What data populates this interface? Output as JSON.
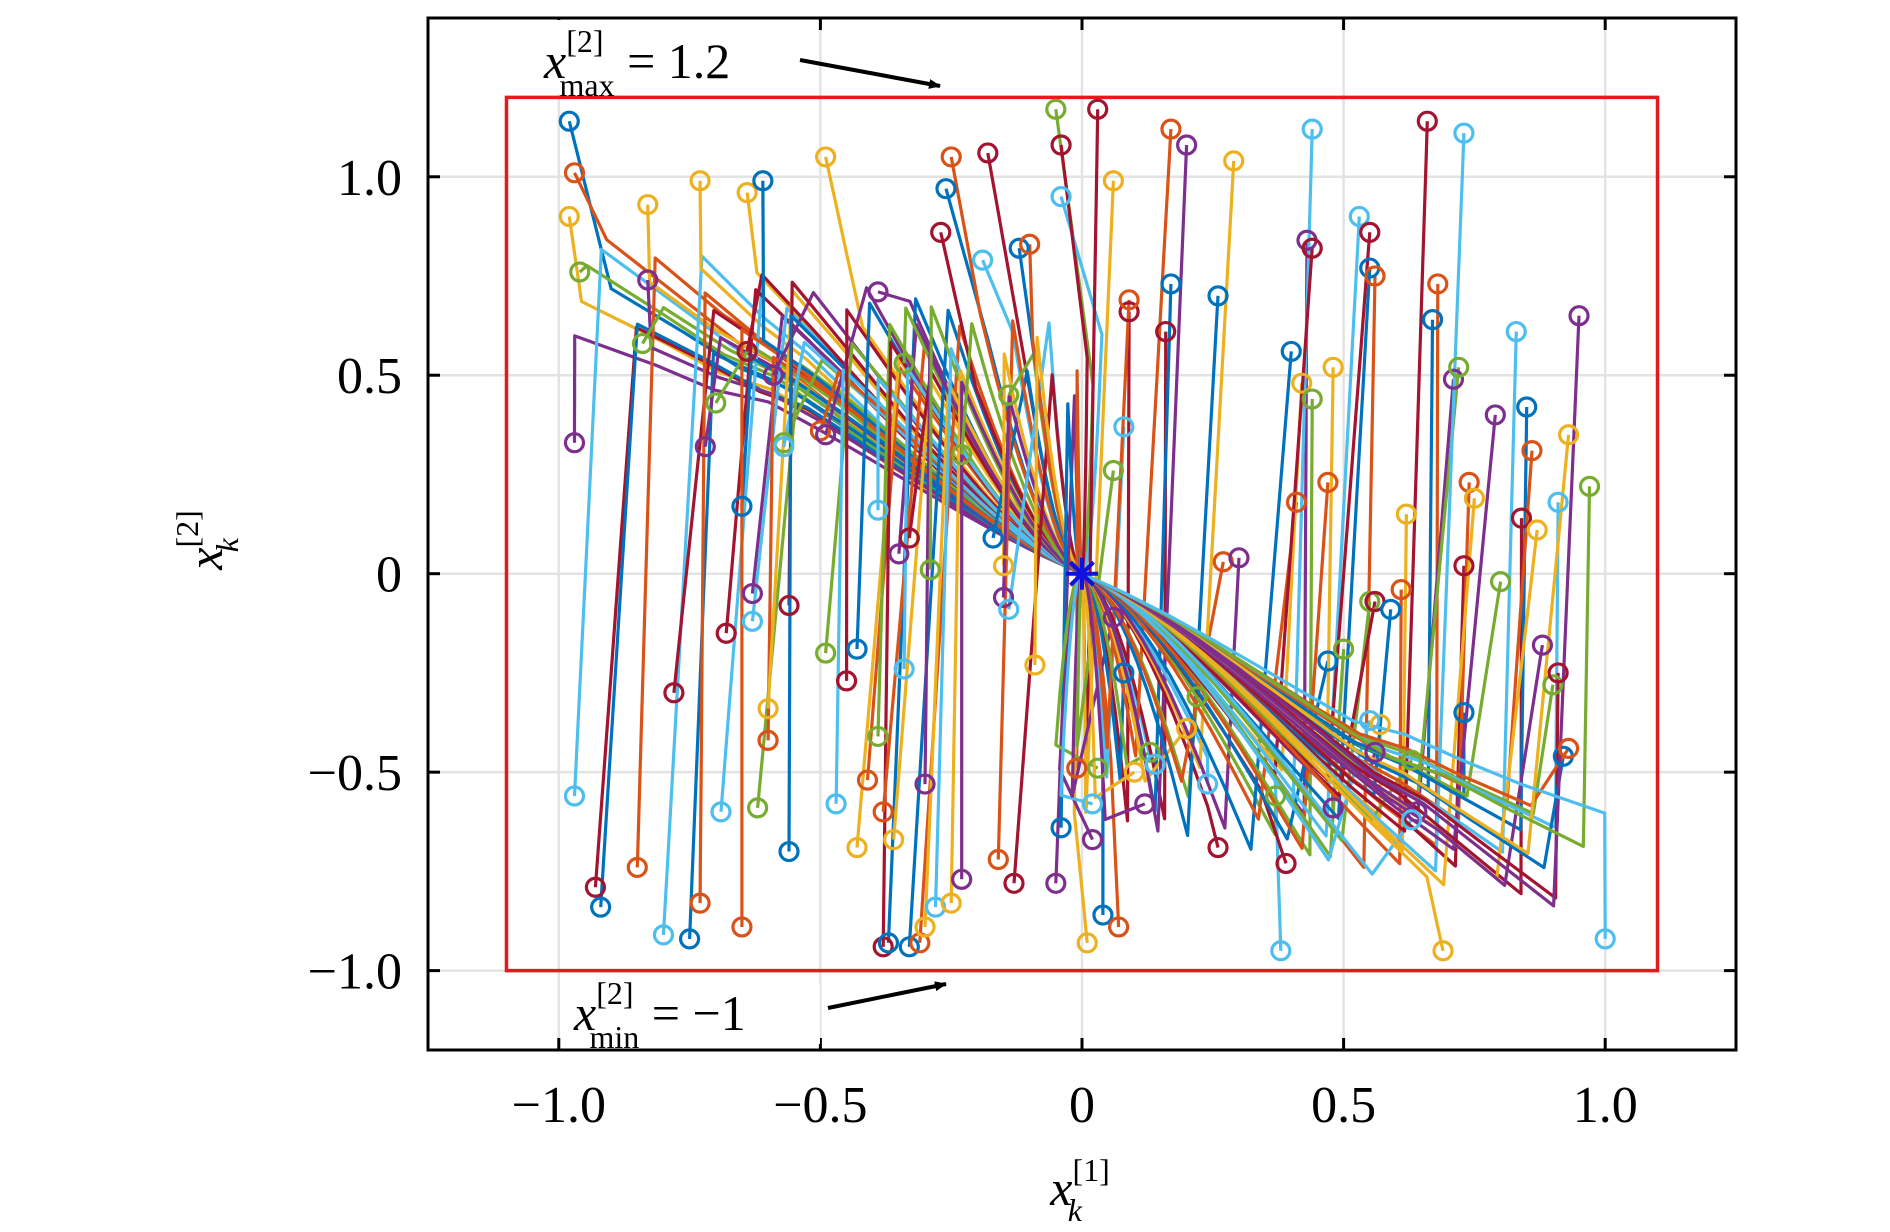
{
  "chart_data": {
    "type": "line",
    "xlim": [
      -1.25,
      1.25
    ],
    "ylim": [
      -1.2,
      1.4
    ],
    "grid": true,
    "legend": "none",
    "xticks": [
      {
        "value": -1.0,
        "label": "−1.0"
      },
      {
        "value": -0.5,
        "label": "−0.5"
      },
      {
        "value": 0,
        "label": "0"
      },
      {
        "value": 0.5,
        "label": "0.5"
      },
      {
        "value": 1.0,
        "label": "1.0"
      }
    ],
    "yticks": [
      {
        "value": -1.0,
        "label": "−1.0"
      },
      {
        "value": -0.5,
        "label": "−0.5"
      },
      {
        "value": 0,
        "label": "0"
      },
      {
        "value": 0.5,
        "label": "0.5"
      },
      {
        "value": 1.0,
        "label": "1.0"
      }
    ],
    "xlabel": {
      "base": "x",
      "sub": "k",
      "sup": "[1]"
    },
    "ylabel": {
      "base": "x",
      "sub": "k",
      "sup": "[2]"
    },
    "constraint_box": {
      "x_min": -1.1,
      "x_max": 1.1,
      "y_min": -1.0,
      "y_max": 1.2,
      "color": "#e3191c"
    },
    "annotations": [
      {
        "base": "x",
        "sup": "[2]",
        "sub": "max",
        "rest": " = 1.2",
        "points_to": [
          -0.26,
          1.2
        ]
      },
      {
        "base": "x",
        "sup": "[2]",
        "sub": "min",
        "rest": " = −1",
        "points_to": [
          -0.25,
          -1.0
        ]
      }
    ],
    "equilibrium": {
      "x": 0,
      "y": 0,
      "marker": "asterisk",
      "color": "#1010e0"
    },
    "palette": [
      "#0072bd",
      "#d95319",
      "#edb120",
      "#7e2f8e",
      "#77ac30",
      "#4dbeee",
      "#a2142f"
    ],
    "initial_states": [
      [
        -0.98,
        1.14
      ],
      [
        -0.97,
        1.01
      ],
      [
        -0.98,
        0.9
      ],
      [
        -0.97,
        0.33
      ],
      [
        -0.96,
        0.76
      ],
      [
        -0.97,
        -0.56
      ],
      [
        -0.93,
        -0.79
      ],
      [
        -0.92,
        -0.84
      ],
      [
        -0.85,
        -0.74
      ],
      [
        -0.83,
        0.93
      ],
      [
        -0.83,
        0.74
      ],
      [
        -0.84,
        0.58
      ],
      [
        -0.8,
        -0.91
      ],
      [
        -0.78,
        -0.3
      ],
      [
        -0.75,
        -0.92
      ],
      [
        -0.73,
        -0.83
      ],
      [
        -0.73,
        0.99
      ],
      [
        -0.72,
        0.32
      ],
      [
        -0.7,
        0.43
      ],
      [
        -0.69,
        -0.6
      ],
      [
        -0.68,
        -0.15
      ],
      [
        -0.65,
        0.17
      ],
      [
        -0.65,
        -0.89
      ],
      [
        -0.64,
        0.96
      ],
      [
        -0.63,
        -0.05
      ],
      [
        -0.62,
        -0.59
      ],
      [
        -0.63,
        -0.12
      ],
      [
        -0.64,
        0.56
      ],
      [
        -0.61,
        0.99
      ],
      [
        -0.6,
        -0.42
      ],
      [
        -0.6,
        -0.34
      ],
      [
        -0.59,
        0.5
      ],
      [
        -0.57,
        0.33
      ],
      [
        -0.57,
        0.32
      ],
      [
        -0.56,
        -0.08
      ],
      [
        -0.56,
        -0.7
      ],
      [
        -0.5,
        0.36
      ],
      [
        -0.49,
        1.05
      ],
      [
        -0.49,
        0.35
      ],
      [
        -0.49,
        -0.2
      ],
      [
        -0.47,
        -0.58
      ],
      [
        -0.45,
        -0.27
      ],
      [
        -0.43,
        -0.19
      ],
      [
        -0.41,
        -0.52
      ],
      [
        -0.43,
        -0.69
      ],
      [
        -0.39,
        0.71
      ],
      [
        -0.39,
        -0.41
      ],
      [
        -0.39,
        0.16
      ],
      [
        -0.38,
        -0.94
      ],
      [
        -0.37,
        -0.93
      ],
      [
        -0.38,
        -0.6
      ],
      [
        -0.36,
        -0.67
      ],
      [
        -0.35,
        0.05
      ],
      [
        -0.34,
        0.53
      ],
      [
        -0.34,
        -0.24
      ],
      [
        -0.33,
        0.09
      ],
      [
        -0.33,
        -0.94
      ],
      [
        -0.31,
        -0.93
      ],
      [
        -0.3,
        -0.89
      ],
      [
        -0.3,
        -0.53
      ],
      [
        -0.29,
        0.01
      ],
      [
        -0.28,
        -0.84
      ],
      [
        -0.27,
        0.86
      ],
      [
        -0.26,
        0.97
      ],
      [
        -0.25,
        1.05
      ],
      [
        -0.25,
        -0.83
      ],
      [
        -0.23,
        -0.77
      ],
      [
        -0.23,
        0.3
      ],
      [
        -0.19,
        0.79
      ],
      [
        -0.18,
        1.06
      ],
      [
        -0.17,
        0.09
      ],
      [
        -0.16,
        -0.72
      ],
      [
        -0.15,
        0.02
      ],
      [
        -0.15,
        -0.06
      ],
      [
        -0.14,
        0.45
      ],
      [
        -0.14,
        -0.09
      ],
      [
        -0.13,
        -0.78
      ],
      [
        -0.12,
        0.82
      ],
      [
        -0.1,
        0.83
      ],
      [
        -0.09,
        -0.23
      ],
      [
        -0.05,
        -0.78
      ],
      [
        -0.05,
        1.17
      ],
      [
        -0.04,
        0.95
      ],
      [
        -0.04,
        1.08
      ],
      [
        -0.04,
        -0.64
      ],
      [
        -0.01,
        -0.49
      ],
      [
        0.01,
        -0.93
      ],
      [
        0.02,
        -0.67
      ],
      [
        0.03,
        -0.49
      ],
      [
        0.02,
        -0.58
      ],
      [
        0.03,
        1.17
      ],
      [
        0.04,
        -0.86
      ],
      [
        0.07,
        -0.89
      ],
      [
        0.06,
        0.99
      ],
      [
        0.06,
        -0.11
      ],
      [
        0.06,
        0.26
      ],
      [
        0.08,
        0.37
      ],
      [
        0.09,
        0.66
      ],
      [
        0.08,
        -0.25
      ],
      [
        0.09,
        0.69
      ],
      [
        0.1,
        -0.5
      ],
      [
        0.12,
        -0.58
      ],
      [
        0.13,
        -0.45
      ],
      [
        0.14,
        -0.48
      ],
      [
        0.16,
        0.61
      ],
      [
        0.17,
        0.73
      ],
      [
        0.17,
        1.12
      ],
      [
        0.2,
        -0.39
      ],
      [
        0.2,
        1.08
      ],
      [
        0.22,
        -0.31
      ],
      [
        0.24,
        -0.53
      ],
      [
        0.26,
        -0.69
      ],
      [
        0.26,
        0.7
      ],
      [
        0.27,
        0.03
      ],
      [
        0.29,
        1.04
      ],
      [
        0.3,
        0.04
      ],
      [
        0.37,
        -0.56
      ],
      [
        0.38,
        -0.95
      ],
      [
        0.39,
        -0.73
      ],
      [
        0.4,
        0.56
      ],
      [
        0.41,
        0.18
      ],
      [
        0.42,
        0.48
      ],
      [
        0.43,
        0.84
      ],
      [
        0.44,
        0.44
      ],
      [
        0.44,
        1.12
      ],
      [
        0.44,
        0.82
      ],
      [
        0.47,
        -0.22
      ],
      [
        0.47,
        0.23
      ],
      [
        0.48,
        0.52
      ],
      [
        0.48,
        -0.59
      ],
      [
        0.5,
        -0.19
      ],
      [
        0.53,
        0.9
      ],
      [
        0.55,
        0.86
      ],
      [
        0.55,
        0.77
      ],
      [
        0.56,
        0.75
      ],
      [
        0.57,
        -0.38
      ],
      [
        0.56,
        -0.45
      ],
      [
        0.55,
        -0.07
      ],
      [
        0.55,
        -0.37
      ],
      [
        0.56,
        -0.07
      ],
      [
        0.59,
        -0.09
      ],
      [
        0.61,
        -0.04
      ],
      [
        0.62,
        0.15
      ],
      [
        0.64,
        -0.6
      ],
      [
        0.63,
        -0.47
      ],
      [
        0.63,
        -0.62
      ],
      [
        0.66,
        1.14
      ],
      [
        0.67,
        0.64
      ],
      [
        0.68,
        0.73
      ],
      [
        0.69,
        -0.95
      ],
      [
        0.71,
        0.49
      ],
      [
        0.72,
        0.52
      ],
      [
        0.73,
        1.11
      ],
      [
        0.73,
        0.02
      ],
      [
        0.73,
        -0.35
      ],
      [
        0.74,
        0.23
      ],
      [
        0.75,
        0.19
      ],
      [
        0.79,
        0.4
      ],
      [
        0.8,
        -0.02
      ],
      [
        0.83,
        0.61
      ],
      [
        0.84,
        0.14
      ],
      [
        0.85,
        0.42
      ],
      [
        0.86,
        0.31
      ],
      [
        0.87,
        0.11
      ],
      [
        0.88,
        -0.18
      ],
      [
        0.9,
        -0.28
      ],
      [
        0.91,
        0.18
      ],
      [
        0.91,
        -0.25
      ],
      [
        0.92,
        -0.46
      ],
      [
        0.93,
        -0.44
      ],
      [
        0.93,
        0.35
      ],
      [
        0.95,
        0.65
      ],
      [
        0.97,
        0.22
      ],
      [
        1.0,
        -0.92
      ]
    ]
  }
}
